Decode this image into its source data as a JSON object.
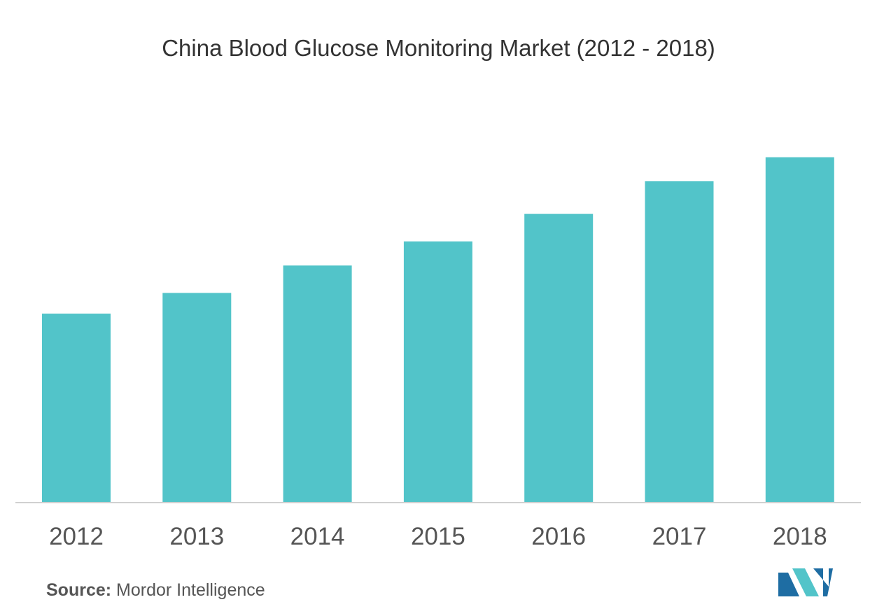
{
  "chart_data": {
    "type": "bar",
    "title": "China Blood Glucose Monitoring Market (2012 - 2018)",
    "categories": [
      "2012",
      "2013",
      "2014",
      "2015",
      "2016",
      "2017",
      "2018"
    ],
    "values": [
      55,
      61,
      69,
      76,
      84,
      93.5,
      100.5
    ],
    "xlabel": "",
    "ylabel": "",
    "ylim": [
      0,
      110
    ],
    "grid": false,
    "bar_color": "#52C4C9"
  },
  "source": {
    "label": "Source:",
    "text": "Mordor Intelligence"
  },
  "logo": {
    "icon": "mordor-intelligence-logo-icon",
    "colors": [
      "#1E6DA3",
      "#52C4C9"
    ]
  }
}
